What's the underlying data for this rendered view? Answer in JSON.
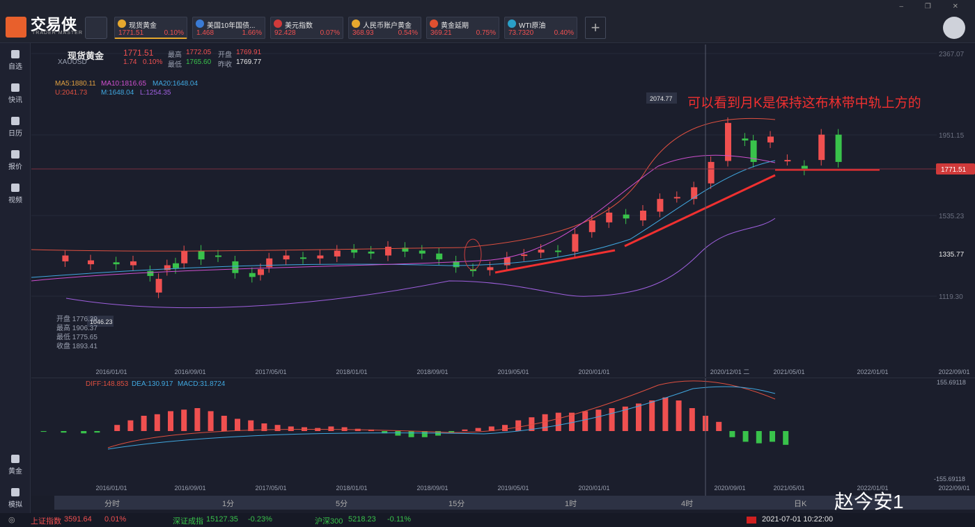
{
  "app": {
    "name": "交易侠",
    "sub": "TRADER MASTER"
  },
  "tabs": [
    {
      "name": "现货黄金",
      "price": "1771.51",
      "change": "0.10%",
      "icon": "gold-icon",
      "color": "#e6a82e"
    },
    {
      "name": "美国10年国债...",
      "price": "1.468",
      "change": "1.66%",
      "icon": "bar-chart-icon",
      "color": "#3a7bd5"
    },
    {
      "name": "美元指数",
      "price": "92.428",
      "change": "0.07%",
      "icon": "us-flag-icon",
      "color": "#d03a3a"
    },
    {
      "name": "人民币账户黄金",
      "price": "368.93",
      "change": "0.54%",
      "icon": "gold-icon",
      "color": "#e6a82e"
    },
    {
      "name": "黄金延期",
      "price": "369.21",
      "change": "0.75%",
      "icon": "gold-bar-icon",
      "color": "#e05030"
    },
    {
      "name": "WTI原油",
      "price": "73.7320",
      "change": "0.40%",
      "icon": "oil-icon",
      "color": "#2aa0c8"
    }
  ],
  "sidebar": [
    "自选",
    "快讯",
    "日历",
    "报价",
    "视频"
  ],
  "sidebar_bottom": [
    "黄金",
    "模拟"
  ],
  "symbol": {
    "name": "现货黄金",
    "code": "XAUUSD",
    "price": "1771.51",
    "chg": "1.74",
    "pct": "0.10%",
    "high_l": "最高",
    "high": "1772.05",
    "open_l": "开盘",
    "open": "1769.91",
    "low_l": "最低",
    "low": "1765.60",
    "prev_l": "昨收",
    "prev": "1769.77"
  },
  "ma": {
    "ma5": "MA5:1880.11",
    "ma10": "MA10:1816.65",
    "ma20": "MA20:1648.04",
    "u": "U:2041.73",
    "m": "M:1648.04",
    "l": "L:1254.35"
  },
  "ohlc_box": {
    "open": "开盘 1776.39",
    "high": "最高 1906.37",
    "low": "最低 1775.65",
    "close": "收盘 1893.41"
  },
  "annotation": "可以看到月K是保持这布林带中轨上方的",
  "price_labels": {
    "p1": "2367.07",
    "p2": "1951.15",
    "p3": "1535.23",
    "p4": "1119.30",
    "current": "1771.51",
    "alert": "1335.77",
    "peak": "2074.77",
    "low": "1046.23"
  },
  "x_dates": [
    "2016/01/01",
    "2016/09/01",
    "2017/05/01",
    "2018/01/01",
    "2018/09/01",
    "2019/05/01",
    "2020/01/01",
    "2020/12/01 二",
    "2021/05/01",
    "2022/01/01",
    "2022/09/01"
  ],
  "x_dates_sub": [
    "2016/01/01",
    "2016/09/01",
    "2017/05/01",
    "2018/01/01",
    "2018/09/01",
    "2019/05/01",
    "2020/01/01",
    "2020/09/01",
    "2021/05/01",
    "2022/01/01",
    "2022/09/01"
  ],
  "macd": {
    "diff": "DIFF:148.853",
    "dea": "DEA:130.917",
    "macd": "MACD:31.8724",
    "top": "155.69118",
    "bottom": "-155.69118"
  },
  "periods": [
    "分时",
    "1分",
    "5分",
    "15分",
    "1时",
    "4时",
    "日K"
  ],
  "status": {
    "sh_name": "上证指数",
    "sh_val": "3591.64",
    "sh_pct": "0.01%",
    "sz_name": "深证成指",
    "sz_val": "15127.35",
    "sz_pct": "-0.23%",
    "hs_name": "沪深300",
    "hs_val": "5218.23",
    "hs_pct": "-0.11%",
    "datetime": "2021-07-01 10:22:00"
  },
  "watermark": "赵今安1",
  "chart_data": {
    "type": "candlestick",
    "title": "现货黄金 XAUUSD 月K",
    "candles_count": 68,
    "ylim": [
      1000,
      2367.07
    ],
    "colors": {
      "up": "#f05050",
      "down": "#39c24b"
    }
  }
}
